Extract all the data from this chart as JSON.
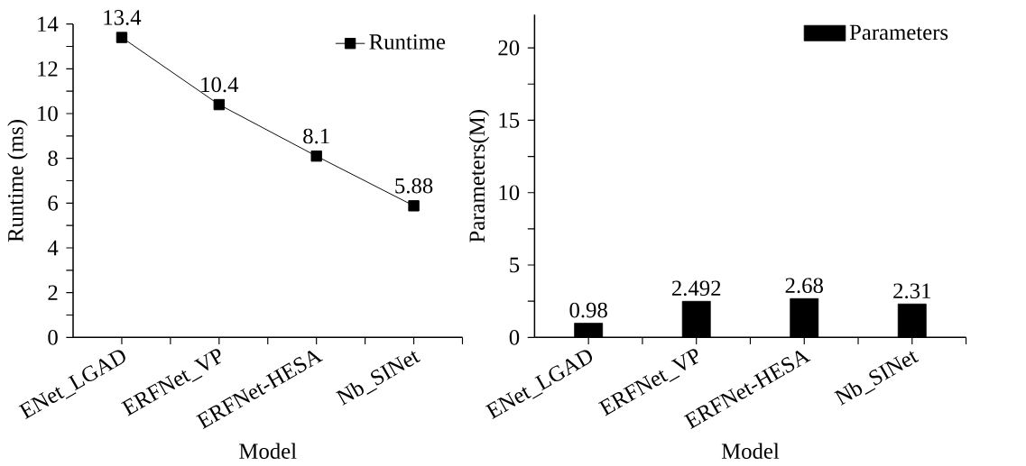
{
  "chart_data": [
    {
      "type": "line",
      "xlabel": "Model",
      "ylabel": "Runtime (ms)",
      "categories": [
        "ENet_LGAD",
        "ERFNet_VP",
        "ERFNet-HESA",
        "Nb_SINet"
      ],
      "series": [
        {
          "name": "Runtime",
          "color": "#000000",
          "values": [
            13.4,
            10.4,
            8.1,
            5.88
          ]
        }
      ],
      "ylim": [
        0,
        14
      ],
      "yticks": [
        0,
        {
          "value": 1,
          "label": null
        },
        2,
        {
          "value": 3,
          "label": null
        },
        4,
        {
          "value": 5,
          "label": null
        },
        6,
        {
          "value": 7,
          "label": null
        },
        8,
        {
          "value": 9,
          "label": null
        },
        10,
        {
          "value": 11,
          "label": null
        },
        12,
        {
          "value": 13,
          "label": null
        },
        14
      ],
      "marker": "square",
      "line_style": "solid",
      "data_labels": true,
      "legend": "top right",
      "grid": false
    },
    {
      "type": "bar",
      "xlabel": "Model",
      "ylabel": "Parameters(M)",
      "categories": [
        "ENet_LGAD",
        "ERFNet_VP",
        "ERFNet-HESA",
        "Nb_SINet"
      ],
      "series": [
        {
          "name": "Parameters",
          "color": "#000000",
          "values": [
            0.98,
            2.492,
            2.68,
            2.31
          ]
        }
      ],
      "ylim": [
        0,
        22.3
      ],
      "yticks": [
        0,
        {
          "value": 2.5,
          "label": null
        },
        5,
        {
          "value": 7.5,
          "label": null
        },
        10,
        {
          "value": 12.5,
          "label": null
        },
        15,
        {
          "value": 17.5,
          "label": null
        },
        20
      ],
      "data_labels": true,
      "legend": "top right",
      "grid": false
    }
  ]
}
